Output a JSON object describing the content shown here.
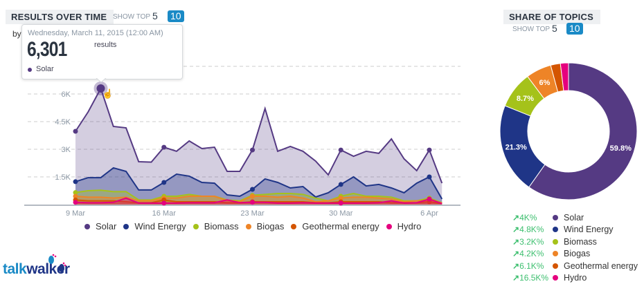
{
  "results_over_time": {
    "title": "RESULTS OVER TIME",
    "show_top_label": "SHOW TOP",
    "show_top_options": [
      "5",
      "10"
    ],
    "selected_option": "10",
    "by_label": "by",
    "tooltip": {
      "date": "Wednesday, March 11, 2015 (12:00 AM)",
      "value": "6,301",
      "unit": "results",
      "series": "Solar"
    }
  },
  "chart_data": {
    "type": "area",
    "x": [
      "2015-03-09",
      "2015-03-10",
      "2015-03-11",
      "2015-03-12",
      "2015-03-13",
      "2015-03-14",
      "2015-03-15",
      "2015-03-16",
      "2015-03-17",
      "2015-03-18",
      "2015-03-19",
      "2015-03-20",
      "2015-03-21",
      "2015-03-22",
      "2015-03-23",
      "2015-03-24",
      "2015-03-25",
      "2015-03-26",
      "2015-03-27",
      "2015-03-28",
      "2015-03-29",
      "2015-03-30",
      "2015-03-31",
      "2015-04-01",
      "2015-04-02",
      "2015-04-03",
      "2015-04-04",
      "2015-04-05",
      "2015-04-06",
      "2015-04-07"
    ],
    "x_tick_labels": [
      "9 Mar",
      "16 Mar",
      "23 Mar",
      "30 Mar",
      "6 Apr"
    ],
    "y_tick_labels": [
      "1.5K",
      "3K",
      "4.5K",
      "6K"
    ],
    "ylim": [
      0,
      7500
    ],
    "grid": true,
    "legend_position": "bottom",
    "series": [
      {
        "name": "Solar",
        "color": "#553a83",
        "values": [
          3975,
          5025,
          6301,
          4240,
          4160,
          2325,
          2300,
          3110,
          2890,
          3450,
          3040,
          3110,
          1800,
          1800,
          2960,
          5210,
          2890,
          3150,
          2890,
          2360,
          1610,
          2960,
          2620,
          2890,
          2780,
          3560,
          2480,
          1840,
          2960,
          1160
        ]
      },
      {
        "name": "Wind Energy",
        "color": "#1f3587",
        "values": [
          1240,
          1460,
          1460,
          1990,
          1800,
          790,
          790,
          1200,
          1650,
          1540,
          1200,
          1160,
          525,
          450,
          825,
          1390,
          1200,
          900,
          975,
          410,
          640,
          1090,
          1500,
          1010,
          1090,
          900,
          640,
          1160,
          1500,
          300
        ]
      },
      {
        "name": "Biomass",
        "color": "#a5c21a",
        "values": [
          650,
          750,
          780,
          700,
          700,
          250,
          250,
          450,
          450,
          550,
          450,
          450,
          250,
          200,
          500,
          550,
          600,
          600,
          550,
          350,
          200,
          450,
          600,
          450,
          450,
          400,
          200,
          200,
          350,
          100
        ]
      },
      {
        "name": "Biogas",
        "color": "#ee8427",
        "values": [
          450,
          400,
          400,
          350,
          400,
          200,
          200,
          350,
          350,
          450,
          450,
          450,
          200,
          150,
          450,
          450,
          400,
          450,
          350,
          150,
          200,
          350,
          400,
          400,
          350,
          300,
          150,
          200,
          200,
          100
        ]
      },
      {
        "name": "Geothermal energy",
        "color": "#d45500",
        "values": [
          250,
          200,
          200,
          200,
          150,
          100,
          100,
          250,
          150,
          150,
          150,
          150,
          100,
          100,
          150,
          150,
          150,
          150,
          150,
          100,
          100,
          150,
          150,
          150,
          150,
          100,
          100,
          100,
          150,
          50
        ]
      },
      {
        "name": "Hydro",
        "color": "#e5007e",
        "values": [
          120,
          100,
          100,
          120,
          350,
          80,
          80,
          80,
          80,
          100,
          100,
          100,
          250,
          100,
          120,
          120,
          80,
          80,
          100,
          80,
          80,
          80,
          80,
          80,
          100,
          200,
          80,
          100,
          300,
          50
        ]
      }
    ]
  },
  "share_of_topics": {
    "title": "SHARE OF TOPICS",
    "show_top_label": "SHOW TOP",
    "show_top_options": [
      "5",
      "10"
    ],
    "selected_option": "10",
    "slices": [
      {
        "name": "Solar",
        "percent": 59.8,
        "label": "59.8%",
        "color": "#553a83",
        "change": "4K%"
      },
      {
        "name": "Wind Energy",
        "percent": 21.3,
        "label": "21.3%",
        "color": "#1f3587",
        "change": "4.8K%"
      },
      {
        "name": "Biomass",
        "percent": 8.7,
        "label": "8.7%",
        "color": "#a5c21a",
        "change": "3.2K%"
      },
      {
        "name": "Biogas",
        "percent": 6.0,
        "label": "6%",
        "color": "#ee8427",
        "change": "4.2K%"
      },
      {
        "name": "Geothermal energy",
        "percent": 2.3,
        "label": "",
        "color": "#d45500",
        "change": "6.1K%"
      },
      {
        "name": "Hydro",
        "percent": 1.9,
        "label": "",
        "color": "#e5007e",
        "change": "16.5K%"
      }
    ],
    "trend_icon": "arrow-up-right-icon"
  },
  "brand": {
    "logo_text": "talkwalker"
  }
}
